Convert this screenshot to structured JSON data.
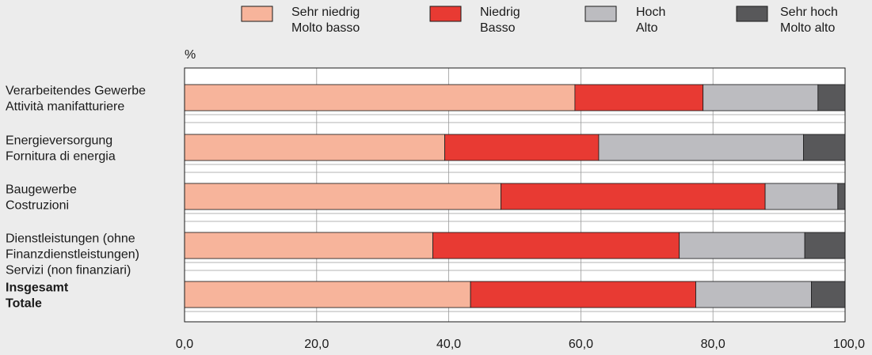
{
  "chart_data": {
    "type": "bar",
    "orientation": "horizontal",
    "stacked": true,
    "unit_label": "%",
    "xlim": [
      0,
      100
    ],
    "x_ticks": [
      "0,0",
      "20,0",
      "40,0",
      "60,0",
      "80,0",
      "100,0"
    ],
    "grid": true,
    "legend_position": "top",
    "categories": [
      {
        "lines": [
          "Verarbeitendes Gewerbe",
          "Attività manifatturiere"
        ],
        "bold": false
      },
      {
        "lines": [
          "Energieversorgung",
          "Fornitura di energia"
        ],
        "bold": false
      },
      {
        "lines": [
          "Baugewerbe",
          "Costruzioni"
        ],
        "bold": false
      },
      {
        "lines": [
          "Dienstleistungen (ohne",
          "Finanzdienstleistungen)",
          "Servizi (non finanziari)"
        ],
        "bold": false
      },
      {
        "lines": [
          "Insgesamt",
          "Totale"
        ],
        "bold": true
      }
    ],
    "series": [
      {
        "name": "Sehr niedrig\nMolto basso",
        "name_lines": [
          "Sehr niedrig",
          "Molto basso"
        ],
        "color": "#f7b49b",
        "values": [
          59.1,
          39.4,
          47.9,
          37.6,
          43.3
        ]
      },
      {
        "name": "Niedrig\nBasso",
        "name_lines": [
          "Niedrig",
          "Basso"
        ],
        "color": "#e83a33",
        "values": [
          19.4,
          23.3,
          40.0,
          37.3,
          34.1
        ]
      },
      {
        "name": "Hoch\nAlto",
        "name_lines": [
          "Hoch",
          "Alto"
        ],
        "color": "#bcbcc0",
        "values": [
          17.4,
          31.0,
          11.0,
          19.0,
          17.5
        ]
      },
      {
        "name": "Sehr hoch\nMolto alto",
        "name_lines": [
          "Sehr hoch",
          "Molto alto"
        ],
        "color": "#58585a",
        "values": [
          4.1,
          6.3,
          1.1,
          6.1,
          5.1
        ]
      }
    ]
  }
}
